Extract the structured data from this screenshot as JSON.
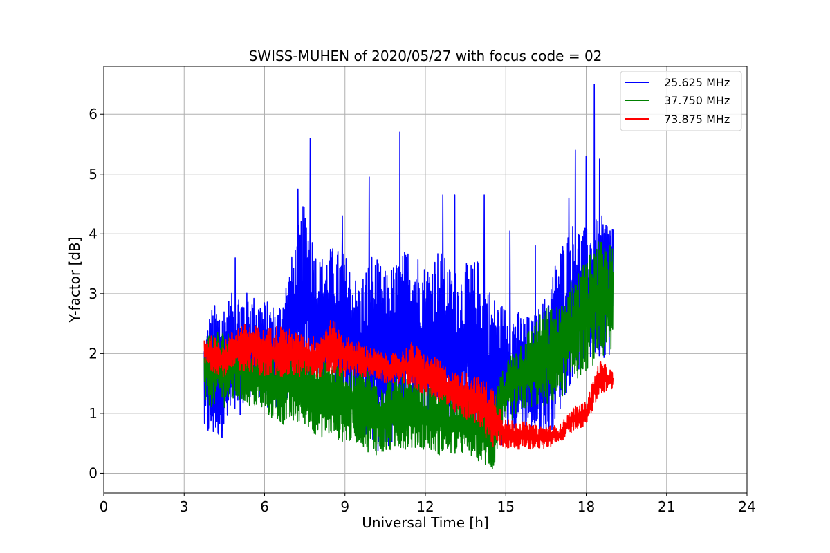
{
  "chart_data": {
    "type": "line",
    "title": "SWISS-MUHEN of 2020/05/27 with focus code = 02",
    "xlabel": "Universal Time [h]",
    "ylabel": "Y-factor [dB]",
    "xlim": [
      0,
      24
    ],
    "ylim": [
      -0.33,
      6.8
    ],
    "xticks": [
      0,
      3,
      6,
      9,
      12,
      15,
      18,
      21,
      24
    ],
    "yticks": [
      0,
      1,
      2,
      3,
      4,
      5,
      6
    ],
    "grid": true,
    "legend_position": "top-right",
    "series": [
      {
        "name": "25.625 MHz",
        "color": "#0000ff",
        "x": [
          3.75,
          4.0,
          4.5,
          5.0,
          5.5,
          6.0,
          6.5,
          7.0,
          7.5,
          8.0,
          8.5,
          9.0,
          9.5,
          10.0,
          10.5,
          11.0,
          11.5,
          12.0,
          12.5,
          13.0,
          13.5,
          14.0,
          14.5,
          15.0,
          15.5,
          16.0,
          16.5,
          17.0,
          17.5,
          18.0,
          18.5,
          19.0
        ],
        "low": [
          0.6,
          0.5,
          0.6,
          0.9,
          1.3,
          1.1,
          1.0,
          1.2,
          1.4,
          1.4,
          1.3,
          1.2,
          0.9,
          0.4,
          0.3,
          0.6,
          0.8,
          0.8,
          0.9,
          0.7,
          0.6,
          0.5,
          0.4,
          0.5,
          0.8,
          0.6,
          0.5,
          1.0,
          1.6,
          1.8,
          1.9,
          2.0
        ],
        "high": [
          2.3,
          2.8,
          2.9,
          3.1,
          3.0,
          2.9,
          2.8,
          3.6,
          4.6,
          3.6,
          3.8,
          3.7,
          3.2,
          3.7,
          3.4,
          3.6,
          3.9,
          3.5,
          3.8,
          3.4,
          3.5,
          3.6,
          3.0,
          2.8,
          2.7,
          2.6,
          3.0,
          3.8,
          4.2,
          4.1,
          4.3,
          4.3
        ],
        "peaks": [
          {
            "x": 7.7,
            "y": 5.6
          },
          {
            "x": 11.05,
            "y": 5.7
          },
          {
            "x": 9.9,
            "y": 4.95
          },
          {
            "x": 18.3,
            "y": 6.5
          },
          {
            "x": 17.6,
            "y": 5.4
          },
          {
            "x": 18.0,
            "y": 5.3
          },
          {
            "x": 13.1,
            "y": 4.65
          },
          {
            "x": 14.2,
            "y": 4.65
          },
          {
            "x": 7.25,
            "y": 4.75
          },
          {
            "x": 8.9,
            "y": 4.3
          },
          {
            "x": 12.65,
            "y": 4.65
          },
          {
            "x": 18.5,
            "y": 5.25
          },
          {
            "x": 4.9,
            "y": 3.6
          },
          {
            "x": 15.15,
            "y": 4.05
          },
          {
            "x": 16.1,
            "y": 3.8
          },
          {
            "x": 17.35,
            "y": 4.6
          }
        ]
      },
      {
        "name": "37.750 MHz",
        "color": "#008000",
        "x": [
          3.75,
          4.0,
          4.5,
          5.0,
          5.5,
          6.0,
          6.5,
          7.0,
          7.5,
          8.0,
          8.5,
          9.0,
          9.5,
          10.0,
          10.5,
          11.0,
          11.5,
          12.0,
          12.5,
          13.0,
          13.5,
          14.0,
          14.5,
          15.0,
          15.5,
          16.0,
          16.5,
          17.0,
          17.5,
          18.0,
          18.5,
          19.0
        ],
        "low": [
          1.1,
          1.1,
          1.1,
          1.2,
          1.1,
          1.0,
          0.8,
          0.8,
          0.8,
          0.6,
          0.6,
          0.5,
          0.5,
          0.3,
          0.3,
          0.4,
          0.4,
          0.4,
          0.3,
          0.3,
          0.3,
          0.2,
          0.0,
          0.8,
          1.0,
          1.1,
          1.1,
          1.2,
          1.5,
          1.7,
          1.9,
          1.9
        ],
        "high": [
          2.3,
          2.4,
          2.4,
          2.3,
          2.2,
          2.2,
          2.1,
          2.1,
          2.0,
          2.0,
          1.9,
          1.8,
          1.8,
          1.7,
          1.6,
          1.6,
          1.6,
          1.5,
          1.5,
          1.4,
          1.3,
          1.3,
          1.2,
          1.9,
          2.2,
          2.5,
          2.8,
          2.8,
          3.3,
          3.6,
          3.9,
          3.8
        ]
      },
      {
        "name": "73.875 MHz",
        "color": "#ff0000",
        "x": [
          3.75,
          4.0,
          4.5,
          5.0,
          5.5,
          6.0,
          6.5,
          7.0,
          7.5,
          8.0,
          8.5,
          9.0,
          9.5,
          10.0,
          10.5,
          11.0,
          11.5,
          12.0,
          12.5,
          13.0,
          13.5,
          14.0,
          14.5,
          15.0,
          15.5,
          16.0,
          16.5,
          17.0,
          17.5,
          18.0,
          18.5,
          19.0
        ],
        "low": [
          1.8,
          1.7,
          1.6,
          1.7,
          1.7,
          1.6,
          1.6,
          1.6,
          1.6,
          1.6,
          1.6,
          1.6,
          1.6,
          1.6,
          1.5,
          1.5,
          1.4,
          1.3,
          1.2,
          1.0,
          0.9,
          0.8,
          0.4,
          0.4,
          0.4,
          0.4,
          0.4,
          0.5,
          0.7,
          0.8,
          1.3,
          1.4
        ],
        "high": [
          2.3,
          2.3,
          2.2,
          2.5,
          2.5,
          2.4,
          2.5,
          2.4,
          2.3,
          2.3,
          2.6,
          2.3,
          2.2,
          2.1,
          2.0,
          2.0,
          2.2,
          2.0,
          1.9,
          1.7,
          1.7,
          1.6,
          1.5,
          0.9,
          0.9,
          0.8,
          0.8,
          0.8,
          1.1,
          1.2,
          1.9,
          1.7
        ]
      }
    ]
  }
}
